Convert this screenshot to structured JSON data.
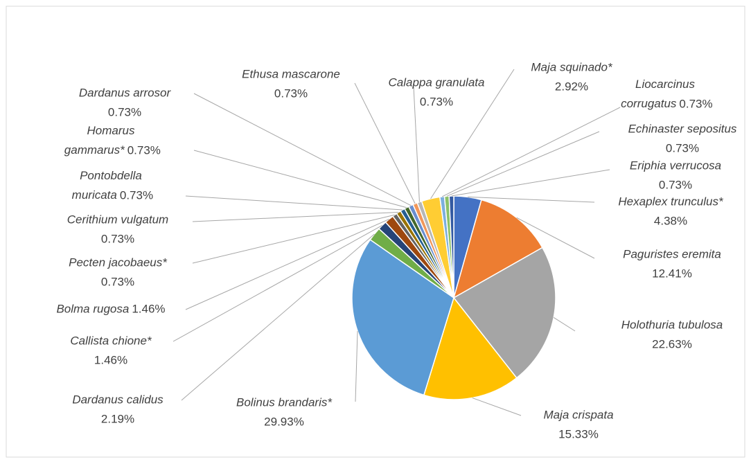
{
  "chart_data": {
    "type": "pie",
    "categories": [
      "Hexaplex trunculus*",
      "Paguristes eremita",
      "Holothuria tubulosa",
      "Maja crispata",
      "Bolinus brandaris*",
      "Dardanus calidus",
      "Callista chione*",
      "Bolma rugosa",
      "Pecten jacobaeus*",
      "Cerithium vulgatum",
      "Pontobdella muricata",
      "Homarus gammarus*",
      "Dardanus arrosor",
      "Ethusa mascarone",
      "Calappa granulata",
      "Maja squinado*",
      "Liocarcinus corrugatus",
      "Echinaster sepositus",
      "Eriphia verrucosa"
    ],
    "values": [
      4.38,
      12.41,
      22.63,
      15.33,
      29.93,
      2.19,
      1.46,
      1.46,
      0.73,
      0.73,
      0.73,
      0.73,
      0.73,
      0.73,
      0.73,
      2.92,
      0.73,
      0.73,
      0.73
    ],
    "value_labels": [
      "4.38%",
      "12.41%",
      "22.63%",
      "15.33%",
      "29.93%",
      "2.19%",
      "1.46%",
      "1.46%",
      "0.73%",
      "0.73%",
      "0.73%",
      "0.73%",
      "0.73%",
      "0.73%",
      "0.73%",
      "2.92%",
      "0.73%",
      "0.73%",
      "0.73%"
    ],
    "colors": [
      "#4472c4",
      "#ed7d31",
      "#a5a5a5",
      "#ffc000",
      "#5b9bd5",
      "#70ad47",
      "#264478",
      "#9e480e",
      "#636363",
      "#997300",
      "#255e91",
      "#43682b",
      "#698ed0",
      "#f1975a",
      "#b7b7b7",
      "#ffcd33",
      "#7cafdd",
      "#8cc168",
      "#335aa1"
    ]
  }
}
